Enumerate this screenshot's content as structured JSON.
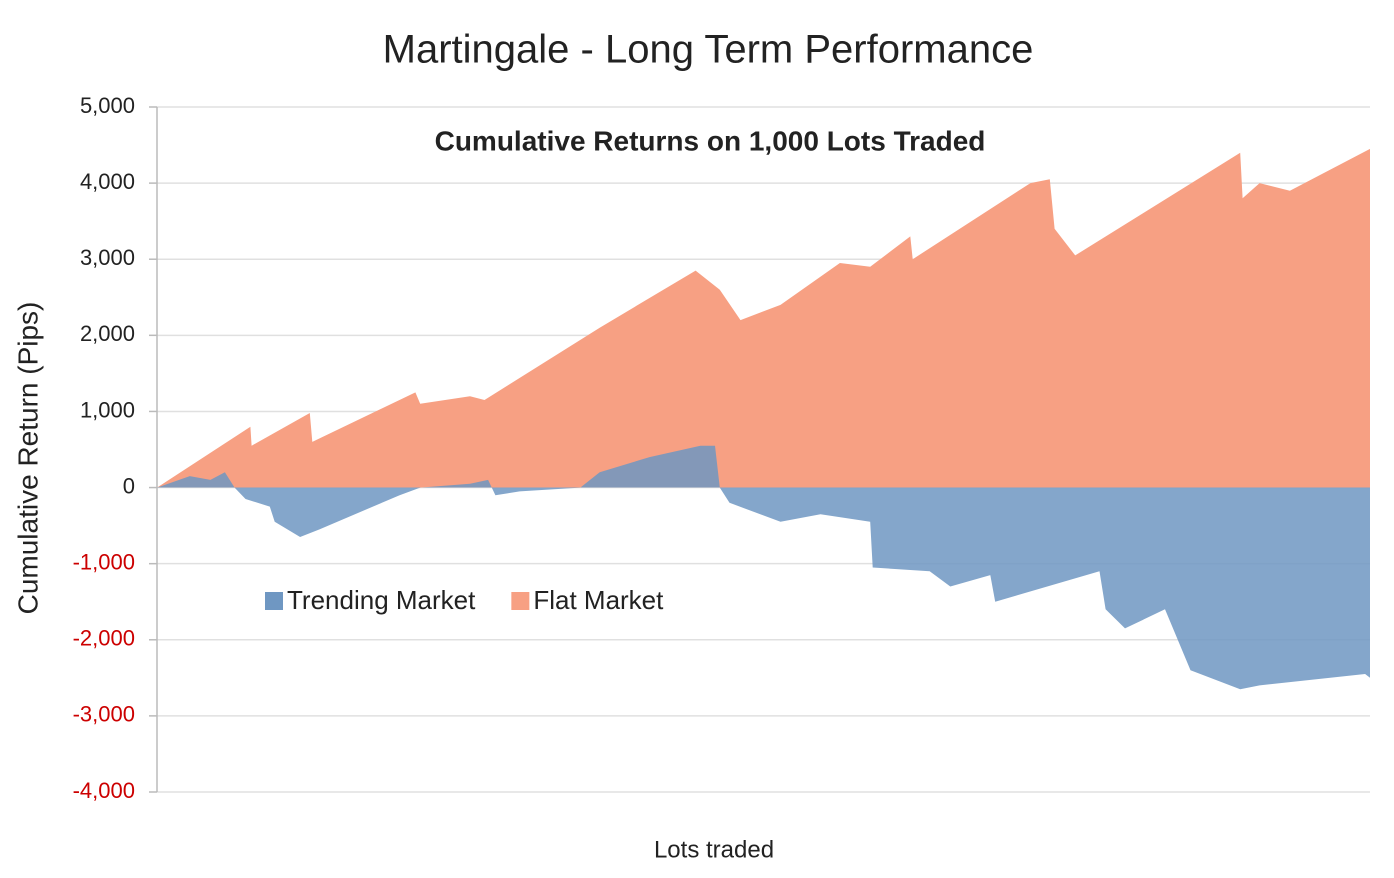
{
  "chart_data": {
    "type": "area",
    "title": "Martingale - Long Term Performance",
    "subtitle": "Cumulative Returns on 1,000 Lots Traded",
    "x_label": "Lots traded",
    "y_label": "Cumulative Return (Pips)",
    "xlim": [
      0,
      1000
    ],
    "ylim": [
      -4000,
      5000
    ],
    "yticks": [
      {
        "value": 5000,
        "label": "5,000"
      },
      {
        "value": 4000,
        "label": "4,000"
      },
      {
        "value": 3000,
        "label": "3,000"
      },
      {
        "value": 2000,
        "label": "2,000"
      },
      {
        "value": 1000,
        "label": "1,000"
      },
      0,
      {
        "value": -1000,
        "label": "-1,000"
      },
      {
        "value": -2000,
        "label": "-2,000"
      },
      {
        "value": -3000,
        "label": "-3,000"
      },
      {
        "value": -4000,
        "label": "-4,000"
      }
    ],
    "negative_tick_color": "#cc0000",
    "grid": true,
    "legend": "left",
    "series": [
      {
        "name": "Flat Market",
        "color": "#f7a083",
        "x": [
          0,
          77,
          78,
          126,
          128,
          213,
          217,
          258,
          270,
          365,
          444,
          464,
          481,
          514,
          563,
          588,
          621,
          623,
          720,
          736,
          740,
          757,
          893,
          895,
          909,
          934,
          1000
        ],
        "values": [
          0,
          800,
          550,
          980,
          600,
          1250,
          1100,
          1200,
          1150,
          2100,
          2850,
          2600,
          2200,
          2400,
          2950,
          2900,
          3300,
          3000,
          4000,
          4050,
          3400,
          3050,
          4400,
          3800,
          4000,
          3900,
          4450
        ]
      },
      {
        "name": "Trending Market",
        "color": "#6f97c2",
        "x": [
          0,
          27,
          44,
          56,
          64,
          73,
          93,
          97,
          118,
          134,
          200,
          217,
          258,
          273,
          279,
          299,
          349,
          365,
          406,
          448,
          460,
          464,
          472,
          514,
          547,
          588,
          590,
          637,
          654,
          687,
          691,
          777,
          782,
          798,
          831,
          852,
          893,
          909,
          996,
          1000
        ],
        "values": [
          0,
          150,
          100,
          200,
          0,
          -150,
          -250,
          -450,
          -650,
          -550,
          -100,
          0,
          50,
          100,
          -100,
          -50,
          0,
          200,
          400,
          550,
          550,
          0,
          -200,
          -450,
          -350,
          -450,
          -1050,
          -1100,
          -1300,
          -1150,
          -1500,
          -1100,
          -1600,
          -1850,
          -1600,
          -2400,
          -2650,
          -2600,
          -2450,
          -2500
        ]
      }
    ]
  }
}
